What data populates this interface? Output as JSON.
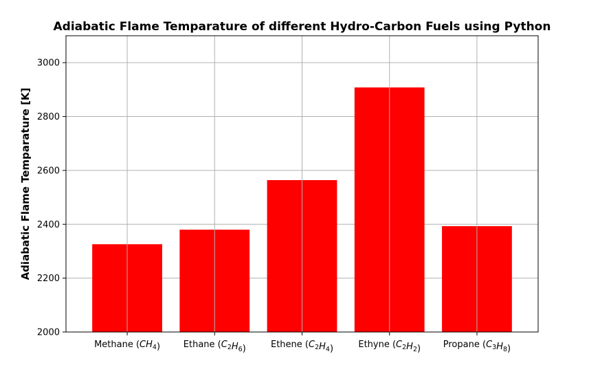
{
  "chart_data": {
    "type": "bar",
    "title": "Adiabatic Flame Temparature of different Hydro-Carbon Fuels using Python",
    "xlabel": "",
    "ylabel": "Adiabatic Flame Temparature [K]",
    "categories": [
      {
        "name": "Methane",
        "formula": [
          [
            "C",
            ""
          ],
          [
            "H",
            "4"
          ]
        ]
      },
      {
        "name": "Ethane",
        "formula": [
          [
            "C",
            "2"
          ],
          [
            "H",
            "6"
          ]
        ]
      },
      {
        "name": "Ethene",
        "formula": [
          [
            "C",
            "2"
          ],
          [
            "H",
            "4"
          ]
        ]
      },
      {
        "name": "Ethyne",
        "formula": [
          [
            "C",
            "2"
          ],
          [
            "H",
            "2"
          ]
        ]
      },
      {
        "name": "Propane",
        "formula": [
          [
            "C",
            "3"
          ],
          [
            "H",
            "8"
          ]
        ]
      }
    ],
    "values": [
      2326,
      2380,
      2564,
      2908,
      2393
    ],
    "ylim": [
      2000,
      3100
    ],
    "yticks": [
      2000,
      2200,
      2400,
      2600,
      2800,
      3000
    ],
    "grid": true,
    "bar_color": "#ff0000",
    "grid_color": "#b0b0b0"
  }
}
